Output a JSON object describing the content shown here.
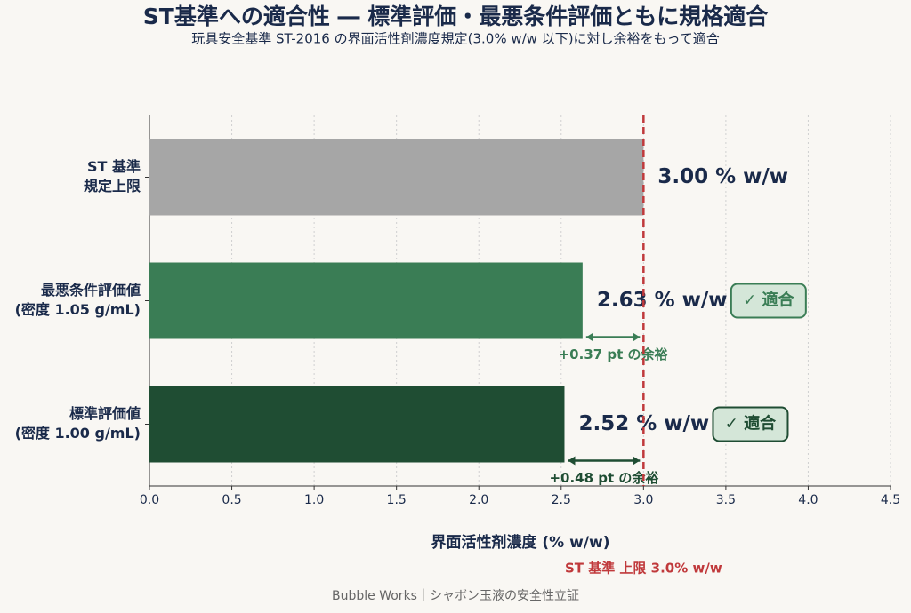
{
  "chart_data": {
    "type": "barh",
    "title": "ST基準への適合性 ― 標準評価・最悪条件評価ともに規格適合",
    "subtitle": "玩具安全基準 ST-2016 の界面活性剤濃度規定(3.0% w/w 以下)に対し余裕をもって適合",
    "categories": [
      [
        "ST 基準",
        "規定上限"
      ],
      [
        "最悪条件評価値",
        "(密度 1.05 g/mL)"
      ],
      [
        "標準評価値",
        "(密度 1.00 g/mL)"
      ]
    ],
    "values": [
      3.0,
      2.63,
      2.52
    ],
    "value_labels": [
      "3.00 % w/w",
      "2.63 % w/w",
      "2.52 % w/w"
    ],
    "colors": [
      "#a6a6a6",
      "#3a7d55",
      "#1f4d33"
    ],
    "badges": [
      null,
      "✓ 適合",
      "✓ 適合"
    ],
    "margin_labels": [
      null,
      "+0.37 pt の余裕",
      "+0.48 pt の余裕"
    ],
    "threshold": {
      "value": 3.0,
      "label": "ST 基準 上限 3.0% w/w",
      "color": "#c0393b"
    },
    "xlabel": "界面活性剤濃度 (% w/w)",
    "xlim": [
      0,
      4.5
    ],
    "xticks": [
      {
        "value": 0,
        "label": "0.0"
      },
      0.5,
      {
        "value": 1,
        "label": "1.0"
      },
      1.5,
      {
        "value": 2,
        "label": "2.0"
      },
      2.5,
      {
        "value": 3,
        "label": "3.0"
      },
      3.5,
      {
        "value": 4,
        "label": "4.0"
      },
      4.5
    ],
    "grid": true
  },
  "footer": "Bubble Works｜シャボン玉液の安全性立証"
}
